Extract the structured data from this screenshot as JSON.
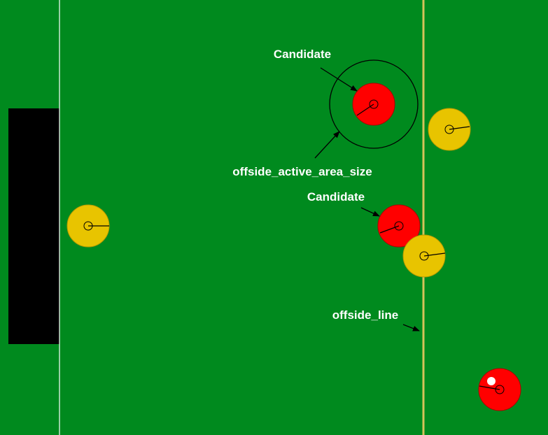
{
  "colors": {
    "field": "#008a1e",
    "goal": "#000000",
    "field_line": "#ffffff",
    "offside_line": "#d4c35a",
    "team_red": "#ff0000",
    "team_yellow": "#e8c400",
    "ball": "#ffffff",
    "annotation": "#000000"
  },
  "labels": {
    "candidate_top": "Candidate",
    "active_area": "offside_active_area_size",
    "candidate_mid": "Candidate",
    "offside_line": "offside_line"
  },
  "players": [
    {
      "id": "red-candidate-top",
      "team": "red"
    },
    {
      "id": "red-candidate-mid",
      "team": "red"
    },
    {
      "id": "red-ball-carrier",
      "team": "red",
      "has_ball": true
    },
    {
      "id": "yellow-goalkeeper",
      "team": "yellow"
    },
    {
      "id": "yellow-defender-top",
      "team": "yellow"
    },
    {
      "id": "yellow-defender-mid",
      "team": "yellow"
    }
  ]
}
